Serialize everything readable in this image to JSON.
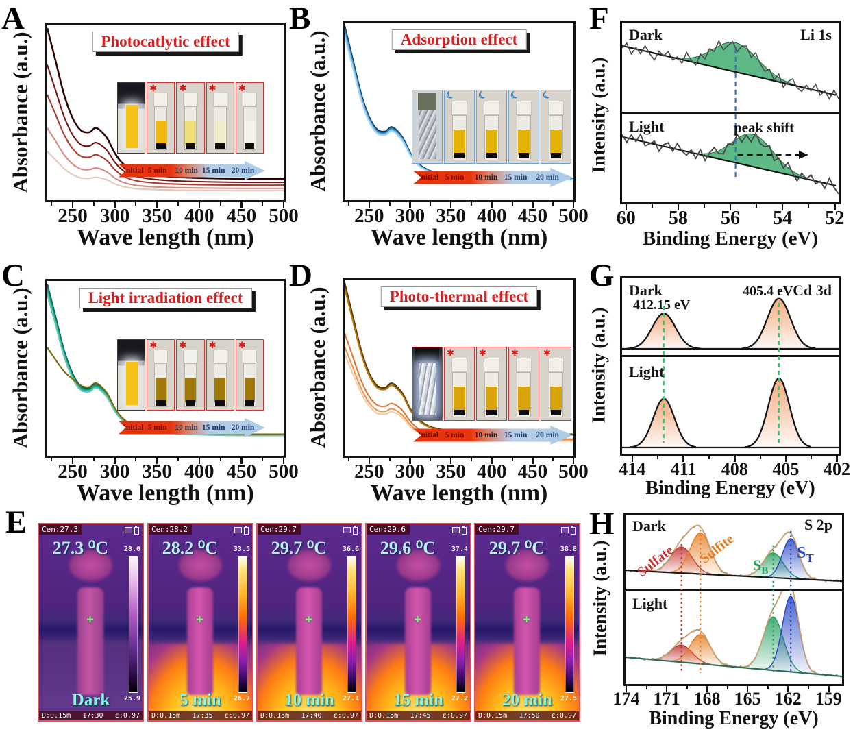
{
  "figure": {
    "background": "#ffffff"
  },
  "arrow_labels": [
    "Initial",
    "5 min",
    "10 min",
    "15 min",
    "20 min"
  ],
  "arrow_label_colors": [
    "#6b0d03",
    "#7a1004",
    "#20202e",
    "#173a6e",
    "#173a6e"
  ],
  "panels": {
    "A": {
      "letter": "A",
      "title": "Photocatlytic effect",
      "xlabel": "Wave length (nm)",
      "ylabel": "Absorbance (a.u.)"
    },
    "B": {
      "letter": "B",
      "title": "Adsorption effect",
      "xlabel": "Wave length (nm)",
      "ylabel": "Absorbance (a.u.)"
    },
    "C": {
      "letter": "C",
      "title": "Light irradiation effect",
      "xlabel": "Wave length (nm)",
      "ylabel": "Absorbance (a.u.)"
    },
    "D": {
      "letter": "D",
      "title": "Photo-thermal effect",
      "xlabel": "Wave length (nm)",
      "ylabel": "Absorbance (a.u.)"
    },
    "E": {
      "letter": "E"
    },
    "F": {
      "letter": "F",
      "mode_top": "Dark",
      "mode_bottom": "Light",
      "region": "Li 1s",
      "annotation": "peak shift",
      "xlabel": "Binding Energy (eV)",
      "ylabel": "Intensity (a.u.)"
    },
    "G": {
      "letter": "G",
      "mode_top": "Dark",
      "mode_bottom": "Light",
      "region": "Cd 3d",
      "xlabel": "Binding Energy (eV)",
      "ylabel": "Intensity (a.u.)"
    },
    "H": {
      "letter": "H",
      "mode_top": "Dark",
      "mode_bottom": "Light",
      "region": "S 2p",
      "xlabel": "Binding Energy (eV)",
      "ylabel": "Intensity (a.u.)"
    }
  },
  "insets": {
    "A": {
      "frame_border": "#cf3333",
      "first": "lamp",
      "icon": "✱",
      "icon_color": "#e01818",
      "liquids": [
        "#f0b90f",
        "#eedd7a",
        "#efeccb",
        "#f4f2ea"
      ]
    },
    "B": {
      "frame_border": "#6aa5d8",
      "first": "foil",
      "icon": "☾",
      "icon_color": "#2e75b6",
      "liquids": [
        "#e3b307",
        "#e3b307",
        "#e3b307",
        "#e3b307"
      ]
    },
    "C": {
      "frame_border": "#cf3333",
      "first": "lamp",
      "icon": "✱",
      "icon_color": "#e01818",
      "liquids": [
        "#a07908",
        "#a07908",
        "#a07908",
        "#a07908"
      ]
    },
    "D": {
      "frame_border": "#cf3333",
      "first": "foil-lit",
      "icon": "✱",
      "icon_color": "#e01818",
      "liquids": [
        "#d8a408",
        "#d8a408",
        "#d8a408",
        "#d8a408"
      ]
    }
  },
  "thermal_images": [
    {
      "cen": "Cen:27.3",
      "temp": "27.3 ⁰C",
      "scale_max": "28.0",
      "scale_min": "25.9",
      "label": "Dark",
      "distance": "D:0.15m",
      "time": "17:30",
      "emissivity": "ε:0.97",
      "heated": false
    },
    {
      "cen": "Cen:28.2",
      "temp": "28.2 ⁰C",
      "scale_max": "33.5",
      "scale_min": "26.7",
      "label": "5 min",
      "distance": "D:0.15m",
      "time": "17:35",
      "emissivity": "ε:0.97",
      "heated": true
    },
    {
      "cen": "Cen:29.7",
      "temp": "29.7 ⁰C",
      "scale_max": "36.6",
      "scale_min": "27.1",
      "label": "10 min",
      "distance": "D:0.15m",
      "time": "17:40",
      "emissivity": "ε:0.97",
      "heated": true
    },
    {
      "cen": "Cen:29.6",
      "temp": "29.6 ⁰C",
      "scale_max": "37.4",
      "scale_min": "27.2",
      "label": "15 min",
      "distance": "D:0.15m",
      "time": "17:45",
      "emissivity": "ε:0.97",
      "heated": true
    },
    {
      "cen": "Cen:29.7",
      "temp": "29.7 ⁰C",
      "scale_max": "38.8",
      "scale_min": "27.5",
      "label": "20 min",
      "distance": "D:0.15m",
      "time": "17:50",
      "emissivity": "ε:0.97",
      "heated": true
    }
  ],
  "chart_data": [
    {
      "panel": "A",
      "type": "line",
      "title": "Photocatlytic effect",
      "xlabel": "Wave length (nm)",
      "ylabel": "Absorbance (a.u.)",
      "x_range": [
        220,
        500
      ],
      "x_ticks": [
        250,
        300,
        350,
        400,
        450,
        500
      ],
      "x": [
        220,
        230,
        240,
        250,
        260,
        270,
        278,
        290,
        300,
        310,
        325,
        350,
        375,
        400,
        450,
        500
      ],
      "series": [
        {
          "name": "Initial",
          "color": "#2d0505",
          "values": [
            1.0,
            0.8,
            0.6,
            0.46,
            0.385,
            0.375,
            0.4,
            0.345,
            0.25,
            0.185,
            0.14,
            0.115,
            0.105,
            0.1,
            0.095,
            0.095
          ]
        },
        {
          "name": "5 min",
          "color": "#7b1313",
          "values": [
            0.78,
            0.624,
            0.468,
            0.359,
            0.3,
            0.293,
            0.312,
            0.269,
            0.195,
            0.144,
            0.109,
            0.09,
            0.082,
            0.078,
            0.074,
            0.074
          ]
        },
        {
          "name": "10 min",
          "color": "#b03a2e",
          "values": [
            0.6,
            0.48,
            0.36,
            0.276,
            0.231,
            0.225,
            0.24,
            0.207,
            0.15,
            0.111,
            0.084,
            0.069,
            0.063,
            0.06,
            0.057,
            0.057
          ]
        },
        {
          "name": "15 min",
          "color": "#d98880",
          "values": [
            0.4,
            0.32,
            0.24,
            0.184,
            0.154,
            0.15,
            0.16,
            0.138,
            0.1,
            0.074,
            0.056,
            0.046,
            0.042,
            0.04,
            0.038,
            0.038
          ]
        },
        {
          "name": "20 min",
          "color": "#e6c8bb",
          "values": [
            0.26,
            0.208,
            0.156,
            0.12,
            0.1,
            0.098,
            0.104,
            0.09,
            0.065,
            0.048,
            0.036,
            0.03,
            0.027,
            0.026,
            0.025,
            0.025
          ]
        }
      ]
    },
    {
      "panel": "B",
      "type": "line",
      "title": "Adsorption effect",
      "xlabel": "Wave length (nm)",
      "ylabel": "Absorbance (a.u.)",
      "x_range": [
        220,
        500
      ],
      "x_ticks": [
        250,
        300,
        350,
        400,
        450,
        500
      ],
      "x": [
        220,
        230,
        240,
        250,
        260,
        270,
        278,
        290,
        300,
        310,
        325,
        350,
        375,
        400,
        450,
        500
      ],
      "series": [
        {
          "name": "Initial",
          "color": "#10395e",
          "values": [
            1.0,
            0.8,
            0.6,
            0.46,
            0.385,
            0.375,
            0.4,
            0.345,
            0.25,
            0.185,
            0.14,
            0.115,
            0.105,
            0.1,
            0.095,
            0.095
          ]
        },
        {
          "name": "5 min",
          "color": "#1d6fa8",
          "values": [
            0.985,
            0.788,
            0.591,
            0.453,
            0.379,
            0.369,
            0.394,
            0.34,
            0.246,
            0.182,
            0.138,
            0.113,
            0.103,
            0.099,
            0.094,
            0.094
          ]
        },
        {
          "name": "10 min",
          "color": "#3f97cf",
          "values": [
            0.97,
            0.776,
            0.582,
            0.446,
            0.373,
            0.364,
            0.388,
            0.335,
            0.243,
            0.179,
            0.136,
            0.112,
            0.102,
            0.097,
            0.092,
            0.092
          ]
        },
        {
          "name": "15 min",
          "color": "#7fc0e4",
          "values": [
            0.955,
            0.764,
            0.573,
            0.439,
            0.368,
            0.358,
            0.382,
            0.329,
            0.239,
            0.177,
            0.134,
            0.11,
            0.1,
            0.096,
            0.091,
            0.091
          ]
        },
        {
          "name": "20 min",
          "color": "#a9d4ee",
          "values": [
            0.94,
            0.752,
            0.564,
            0.432,
            0.362,
            0.353,
            0.376,
            0.324,
            0.235,
            0.174,
            0.132,
            0.108,
            0.099,
            0.094,
            0.089,
            0.089
          ]
        }
      ]
    },
    {
      "panel": "C",
      "type": "line",
      "title": "Light irradiation effect",
      "xlabel": "Wave length (nm)",
      "ylabel": "Absorbance (a.u.)",
      "x_range": [
        220,
        500
      ],
      "x_ticks": [
        250,
        300,
        350,
        400,
        450,
        500
      ],
      "x": [
        220,
        230,
        240,
        250,
        260,
        270,
        278,
        290,
        300,
        310,
        325,
        350,
        375,
        400,
        450,
        500
      ],
      "series": [
        {
          "name": "Initial",
          "color": "#0e6251",
          "values": [
            1.0,
            0.8,
            0.6,
            0.46,
            0.385,
            0.375,
            0.4,
            0.345,
            0.25,
            0.185,
            0.14,
            0.115,
            0.105,
            0.1,
            0.095,
            0.095
          ]
        },
        {
          "name": "5 min",
          "color": "#148f77",
          "values": [
            0.98,
            0.784,
            0.588,
            0.451,
            0.377,
            0.368,
            0.392,
            0.338,
            0.245,
            0.181,
            0.137,
            0.113,
            0.103,
            0.098,
            0.093,
            0.093
          ]
        },
        {
          "name": "10 min",
          "color": "#1abc9c",
          "values": [
            0.96,
            0.768,
            0.576,
            0.442,
            0.37,
            0.36,
            0.384,
            0.331,
            0.24,
            0.178,
            0.134,
            0.11,
            0.101,
            0.096,
            0.091,
            0.091
          ]
        },
        {
          "name": "15 min",
          "color": "#73c6b6",
          "values": [
            0.94,
            0.752,
            0.564,
            0.432,
            0.362,
            0.353,
            0.376,
            0.324,
            0.235,
            0.174,
            0.132,
            0.108,
            0.099,
            0.094,
            0.089,
            0.089
          ]
        },
        {
          "name": "20 min",
          "color": "#7d6608",
          "values": [
            0.62,
            0.545,
            0.475,
            0.43,
            0.39,
            0.382,
            0.405,
            0.35,
            0.255,
            0.19,
            0.145,
            0.118,
            0.107,
            0.102,
            0.097,
            0.097
          ]
        }
      ]
    },
    {
      "panel": "D",
      "type": "line",
      "title": "Photo-thermal effect",
      "xlabel": "Wave length (nm)",
      "ylabel": "Absorbance (a.u.)",
      "x_range": [
        220,
        500
      ],
      "x_ticks": [
        250,
        300,
        350,
        400,
        450,
        500
      ],
      "x": [
        220,
        230,
        240,
        250,
        260,
        270,
        278,
        290,
        300,
        310,
        325,
        350,
        375,
        400,
        450,
        500
      ],
      "series": [
        {
          "name": "Initial",
          "color": "#5d3a06",
          "values": [
            1.0,
            0.8,
            0.6,
            0.46,
            0.385,
            0.375,
            0.4,
            0.345,
            0.25,
            0.185,
            0.14,
            0.115,
            0.105,
            0.1,
            0.095,
            0.095
          ]
        },
        {
          "name": "5 min",
          "color": "#b9770e",
          "values": [
            0.97,
            0.776,
            0.582,
            0.446,
            0.373,
            0.364,
            0.388,
            0.335,
            0.243,
            0.179,
            0.136,
            0.112,
            0.102,
            0.097,
            0.092,
            0.092
          ]
        },
        {
          "name": "10 min",
          "color": "#dc7633",
          "values": [
            0.7,
            0.56,
            0.42,
            0.322,
            0.27,
            0.263,
            0.28,
            0.242,
            0.175,
            0.13,
            0.098,
            0.081,
            0.074,
            0.07,
            0.067,
            0.067
          ]
        },
        {
          "name": "15 min",
          "color": "#eb984e",
          "values": [
            0.62,
            0.496,
            0.372,
            0.285,
            0.239,
            0.233,
            0.248,
            0.214,
            0.155,
            0.115,
            0.087,
            0.071,
            0.065,
            0.062,
            0.059,
            0.059
          ]
        },
        {
          "name": "20 min",
          "color": "#f5cba7",
          "values": [
            0.575,
            0.46,
            0.345,
            0.265,
            0.221,
            0.216,
            0.23,
            0.198,
            0.144,
            0.106,
            0.081,
            0.066,
            0.06,
            0.058,
            0.055,
            0.055
          ]
        }
      ]
    },
    {
      "panel": "F",
      "type": "line",
      "region": "Li 1s",
      "xlabel": "Binding Energy (eV)",
      "ylabel": "Intensity (a.u.)",
      "x_range": [
        60.15,
        51.85
      ],
      "x_ticks": [
        60,
        58,
        56,
        54,
        52
      ],
      "x_minor_ticks": [
        59,
        57,
        55,
        53
      ],
      "dashed_line_ev": 55.8,
      "annotation": "peak shift",
      "subpanels": [
        {
          "name": "Dark",
          "peak_center_ev": 55.8,
          "peak_amp": 0.42,
          "peak_sigma_ev": 0.85
        },
        {
          "name": "Light",
          "peak_center_ev": 55.15,
          "peak_amp": 0.47,
          "peak_sigma_ev": 0.78
        }
      ],
      "noise": [
        0.3,
        -0.5,
        0.8,
        -0.2,
        0.5,
        -0.7,
        0.2,
        0.9,
        -0.4,
        0.1,
        -0.6,
        0.4,
        -0.1,
        0.7,
        -0.8,
        0.3,
        1.0,
        -0.3,
        0.6,
        -0.5,
        0.2,
        -0.9,
        0.5,
        0.1,
        -0.4,
        0.8,
        -0.2,
        -0.6,
        0.4,
        -0.8,
        0.1,
        0.5,
        -0.3,
        0.7,
        -0.5,
        0.9,
        -0.1,
        -0.7,
        0.3,
        0.6,
        -0.4,
        0.2,
        -0.8,
        0.5,
        -0.2,
        0.7,
        -0.6,
        0.4
      ],
      "colors": {
        "fill": "#54b57e",
        "trace": "#4a4a4a",
        "baseline": "#111111",
        "dashed": "#3d6fb8"
      }
    },
    {
      "panel": "G",
      "type": "line",
      "region": "Cd 3d",
      "xlabel": "Binding Energy (eV)",
      "ylabel": "Intensity (a.u.)",
      "x_range": [
        414.6,
        401.9
      ],
      "x_ticks": [
        414,
        411,
        408,
        405,
        402
      ],
      "x_minor_ticks": [
        412.5,
        409.5,
        406.5,
        403.5
      ],
      "peak_labels": [
        "412.15 eV",
        "405.4 eV"
      ],
      "subpanels": [
        {
          "name": "Dark",
          "peaks": [
            {
              "center": 412.15,
              "sigma": 0.68,
              "amp": 0.55
            },
            {
              "center": 405.4,
              "sigma": 0.68,
              "amp": 0.78
            }
          ]
        },
        {
          "name": "Light",
          "peaks": [
            {
              "center": 412.15,
              "sigma": 0.62,
              "amp": 0.58
            },
            {
              "center": 405.4,
              "sigma": 0.62,
              "amp": 0.82
            }
          ]
        }
      ],
      "colors": {
        "fill_top": "#f2a678",
        "outline": "#141414",
        "dashed": "#2ecc71"
      }
    },
    {
      "panel": "H",
      "type": "line",
      "region": "S 2p",
      "xlabel": "Binding Energy (eV)",
      "ylabel": "Intensity (a.u.)",
      "x_range": [
        174.05,
        158.0
      ],
      "x_ticks": [
        174,
        171,
        168,
        165,
        162,
        159
      ],
      "x_minor_ticks": [
        172.5,
        169.5,
        166.5,
        163.5,
        160.5
      ],
      "components": [
        {
          "name": "Sulfate",
          "label_main": "Sulfate",
          "sub": "",
          "color": "#c23030",
          "center": 169.9,
          "sigma": 0.8,
          "amp_dark": 0.38,
          "amp_light": 0.2
        },
        {
          "name": "Sulfite",
          "label_main": "Sulfite",
          "sub": "",
          "color": "#e67e22",
          "center": 168.5,
          "sigma": 0.75,
          "amp_dark": 0.6,
          "amp_light": 0.34
        },
        {
          "name": "S_B",
          "label_main": "S",
          "sub": "B",
          "color": "#27a060",
          "center": 163.1,
          "sigma": 0.75,
          "amp_dark": 0.36,
          "amp_light": 0.62
        },
        {
          "name": "S_T",
          "label_main": "S",
          "sub": "T",
          "color": "#2746c4",
          "center": 161.8,
          "sigma": 0.62,
          "amp_dark": 0.58,
          "amp_light": 0.88
        }
      ],
      "colors": {
        "envelope": "#c8a070",
        "baseline_dark": "#161616",
        "baseline_light": "#2f6b57"
      }
    }
  ]
}
